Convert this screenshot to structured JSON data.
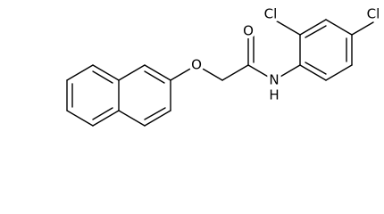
{
  "atoms": [
    {
      "label": "O"
    },
    {
      "label": "O"
    },
    {
      "label": "N"
    },
    {
      "label": "H"
    },
    {
      "label": "Cl"
    },
    {
      "label": "Cl"
    }
  ]
}
